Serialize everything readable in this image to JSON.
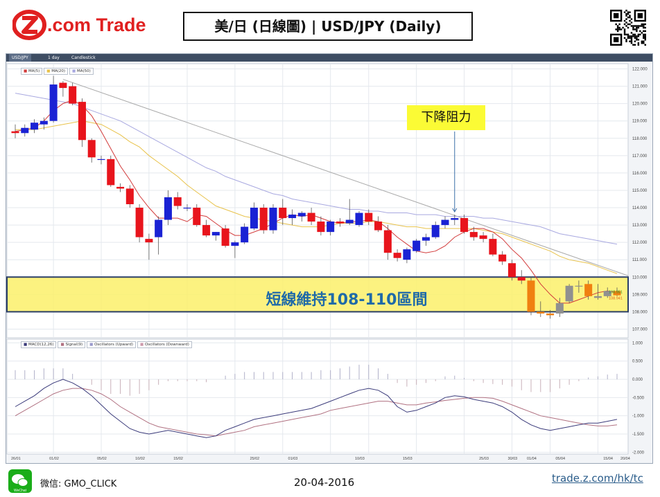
{
  "header": {
    "brand_name": "Z.com Trade",
    "title": "美/日 (日線圖) | USD/JPY  (Daily)"
  },
  "toolbar": {
    "tabs": [
      "USD/JPY",
      "1 day",
      "Candlestick"
    ]
  },
  "price_legend": [
    "MA(5)",
    "MA(20)",
    "MA(50)"
  ],
  "macd_legend": [
    "MACD(12,26)",
    "Signal(9)",
    "Oscillators (Upward)",
    "Oscillators (Downward)"
  ],
  "annotations": {
    "resistance_label": "下降阻力",
    "range_label": "短線維持108-110區間",
    "last_price_ask": "108.951",
    "last_price_bid": "108.941"
  },
  "colors": {
    "bull": "#1a22d4",
    "bear": "#e8141c",
    "recent_bull": "#909090",
    "recent_bear": "#f08010",
    "ma5": "#d23a3a",
    "ma20": "#e8c24a",
    "ma50": "#a8a8e0",
    "trendline": "#a8a8a8",
    "macd": "#3a3a7a",
    "signal": "#b07080",
    "band_fill": "#fbf06a",
    "band_border": "#2a3e66"
  },
  "chart_data": [
    {
      "type": "candlestick",
      "symbol": "USD/JPY",
      "timeframe": "1 day",
      "ylim": [
        106.5,
        122.3
      ],
      "yticks": [
        "122.000",
        "121.000",
        "120.000",
        "119.000",
        "118.000",
        "117.000",
        "116.000",
        "115.000",
        "114.000",
        "113.000",
        "112.000",
        "111.000",
        "110.000",
        "109.000",
        "108.000",
        "107.000"
      ],
      "xticks": [
        "26/01",
        "01/02",
        "05/02",
        "10/02",
        "15/02",
        "25/02",
        "01/03",
        "10/03",
        "15/03",
        "25/03",
        "30/03",
        "01/04",
        "05/04",
        "15/04",
        "20/04"
      ],
      "candles": [
        {
          "o": 118.4,
          "h": 118.8,
          "l": 118.0,
          "c": 118.3
        },
        {
          "o": 118.3,
          "h": 118.8,
          "l": 118.1,
          "c": 118.6
        },
        {
          "o": 118.5,
          "h": 119.1,
          "l": 118.3,
          "c": 118.9
        },
        {
          "o": 118.8,
          "h": 119.2,
          "l": 118.5,
          "c": 119.0
        },
        {
          "o": 119.0,
          "h": 121.6,
          "l": 118.9,
          "c": 121.1
        },
        {
          "o": 121.2,
          "h": 121.3,
          "l": 120.4,
          "c": 120.9
        },
        {
          "o": 121.0,
          "h": 121.2,
          "l": 119.9,
          "c": 120.0
        },
        {
          "o": 120.1,
          "h": 120.3,
          "l": 117.5,
          "c": 117.9
        },
        {
          "o": 117.9,
          "h": 118.0,
          "l": 116.6,
          "c": 116.9
        },
        {
          "o": 116.8,
          "h": 117.0,
          "l": 116.5,
          "c": 116.8
        },
        {
          "o": 116.8,
          "h": 117.0,
          "l": 115.2,
          "c": 115.3
        },
        {
          "o": 115.2,
          "h": 115.4,
          "l": 114.9,
          "c": 115.1
        },
        {
          "o": 115.1,
          "h": 115.3,
          "l": 114.0,
          "c": 114.2
        },
        {
          "o": 114.0,
          "h": 114.2,
          "l": 112.0,
          "c": 112.3
        },
        {
          "o": 112.2,
          "h": 112.5,
          "l": 111.0,
          "c": 112.0
        },
        {
          "o": 112.3,
          "h": 113.5,
          "l": 111.3,
          "c": 113.3
        },
        {
          "o": 113.3,
          "h": 115.0,
          "l": 113.0,
          "c": 114.6
        },
        {
          "o": 114.6,
          "h": 114.9,
          "l": 113.9,
          "c": 114.1
        },
        {
          "o": 114.0,
          "h": 114.2,
          "l": 113.8,
          "c": 114.0
        },
        {
          "o": 114.0,
          "h": 114.2,
          "l": 112.9,
          "c": 113.0
        },
        {
          "o": 113.0,
          "h": 113.3,
          "l": 112.3,
          "c": 112.4
        },
        {
          "o": 112.4,
          "h": 112.6,
          "l": 112.1,
          "c": 112.6
        },
        {
          "o": 112.8,
          "h": 113.0,
          "l": 111.7,
          "c": 111.8
        },
        {
          "o": 111.8,
          "h": 112.1,
          "l": 111.1,
          "c": 112.0
        },
        {
          "o": 112.0,
          "h": 113.1,
          "l": 111.9,
          "c": 112.9
        },
        {
          "o": 112.8,
          "h": 114.3,
          "l": 112.7,
          "c": 114.0
        },
        {
          "o": 114.0,
          "h": 114.2,
          "l": 112.5,
          "c": 112.7
        },
        {
          "o": 112.7,
          "h": 114.2,
          "l": 112.5,
          "c": 114.0
        },
        {
          "o": 114.0,
          "h": 114.5,
          "l": 113.0,
          "c": 113.4
        },
        {
          "o": 113.4,
          "h": 113.9,
          "l": 113.0,
          "c": 113.6
        },
        {
          "o": 113.5,
          "h": 113.8,
          "l": 113.2,
          "c": 113.7
        },
        {
          "o": 113.7,
          "h": 114.0,
          "l": 113.0,
          "c": 113.2
        },
        {
          "o": 113.2,
          "h": 113.5,
          "l": 112.4,
          "c": 112.6
        },
        {
          "o": 112.6,
          "h": 113.3,
          "l": 112.4,
          "c": 113.2
        },
        {
          "o": 113.2,
          "h": 113.4,
          "l": 112.9,
          "c": 113.1
        },
        {
          "o": 113.1,
          "h": 114.5,
          "l": 113.0,
          "c": 113.3
        },
        {
          "o": 113.0,
          "h": 113.8,
          "l": 112.9,
          "c": 113.7
        },
        {
          "o": 113.7,
          "h": 113.9,
          "l": 113.0,
          "c": 113.2
        },
        {
          "o": 113.2,
          "h": 113.5,
          "l": 112.6,
          "c": 112.7
        },
        {
          "o": 112.7,
          "h": 113.0,
          "l": 111.0,
          "c": 111.4
        },
        {
          "o": 111.4,
          "h": 111.6,
          "l": 110.9,
          "c": 111.1
        },
        {
          "o": 111.0,
          "h": 111.7,
          "l": 110.8,
          "c": 111.6
        },
        {
          "o": 111.5,
          "h": 112.2,
          "l": 111.4,
          "c": 112.1
        },
        {
          "o": 112.1,
          "h": 112.5,
          "l": 111.8,
          "c": 112.3
        },
        {
          "o": 112.3,
          "h": 113.2,
          "l": 112.2,
          "c": 113.0
        },
        {
          "o": 113.0,
          "h": 113.5,
          "l": 112.8,
          "c": 113.3
        },
        {
          "o": 113.3,
          "h": 113.6,
          "l": 113.0,
          "c": 113.4
        },
        {
          "o": 113.4,
          "h": 113.6,
          "l": 112.5,
          "c": 112.6
        },
        {
          "o": 112.6,
          "h": 112.9,
          "l": 112.1,
          "c": 112.3
        },
        {
          "o": 112.4,
          "h": 112.6,
          "l": 112.0,
          "c": 112.2
        },
        {
          "o": 112.2,
          "h": 112.5,
          "l": 111.2,
          "c": 111.3
        },
        {
          "o": 111.3,
          "h": 111.5,
          "l": 110.7,
          "c": 110.9
        },
        {
          "o": 110.8,
          "h": 111.0,
          "l": 109.8,
          "c": 110.0
        },
        {
          "o": 110.0,
          "h": 110.4,
          "l": 109.6,
          "c": 109.8
        },
        {
          "o": 109.8,
          "h": 110.0,
          "l": 107.8,
          "c": 108.0
        },
        {
          "o": 108.0,
          "h": 108.6,
          "l": 107.7,
          "c": 107.9
        },
        {
          "o": 107.9,
          "h": 108.1,
          "l": 107.6,
          "c": 107.8
        },
        {
          "o": 107.9,
          "h": 108.8,
          "l": 107.7,
          "c": 108.5
        },
        {
          "o": 108.6,
          "h": 109.6,
          "l": 108.5,
          "c": 109.5
        },
        {
          "o": 109.5,
          "h": 109.8,
          "l": 109.1,
          "c": 109.5
        },
        {
          "o": 109.6,
          "h": 109.8,
          "l": 108.7,
          "c": 108.9
        },
        {
          "o": 108.8,
          "h": 109.6,
          "l": 108.7,
          "c": 108.9
        },
        {
          "o": 108.9,
          "h": 109.4,
          "l": 108.8,
          "c": 109.2
        },
        {
          "o": 109.2,
          "h": 109.4,
          "l": 108.9,
          "c": 108.95
        }
      ],
      "ma5": [
        118.4,
        118.5,
        118.6,
        119.0,
        119.6,
        120.0,
        120.2,
        119.9,
        119.3,
        118.4,
        117.4,
        116.4,
        115.6,
        114.7,
        114.0,
        113.4,
        113.4,
        113.4,
        113.2,
        113.6,
        113.5,
        113.1,
        112.7,
        112.4,
        112.4,
        112.6,
        112.8,
        113.1,
        113.4,
        113.6,
        113.5,
        113.6,
        113.4,
        113.2,
        113.1,
        113.2,
        113.2,
        113.3,
        113.2,
        112.8,
        112.3,
        111.9,
        111.5,
        111.4,
        111.5,
        111.8,
        112.3,
        112.6,
        112.8,
        112.8,
        112.6,
        112.2,
        111.6,
        111.1,
        110.4,
        109.6,
        109.0,
        108.5,
        108.5,
        108.7,
        108.9,
        109.1,
        109.2,
        109.1
      ],
      "ma20": [
        118.5,
        118.5,
        118.5,
        118.6,
        118.7,
        118.8,
        118.9,
        119.0,
        118.9,
        118.8,
        118.5,
        118.2,
        117.8,
        117.5,
        117.0,
        116.6,
        116.2,
        115.8,
        115.3,
        114.9,
        114.5,
        114.1,
        113.9,
        113.7,
        113.5,
        113.4,
        113.3,
        113.2,
        113.1,
        113.0,
        112.9,
        112.9,
        112.9,
        113.0,
        113.1,
        113.1,
        113.1,
        113.2,
        113.2,
        113.1,
        113.0,
        112.9,
        112.9,
        112.8,
        112.8,
        112.8,
        112.8,
        112.8,
        112.8,
        112.7,
        112.6,
        112.5,
        112.3,
        112.1,
        111.9,
        111.7,
        111.5,
        111.2,
        111.0,
        110.9,
        110.8,
        110.6,
        110.4,
        110.2
      ],
      "ma50": [
        120.6,
        120.5,
        120.4,
        120.3,
        120.2,
        120.1,
        120.0,
        119.8,
        119.6,
        119.4,
        119.2,
        119.0,
        118.7,
        118.4,
        118.1,
        117.8,
        117.5,
        117.2,
        116.9,
        116.6,
        116.3,
        116.1,
        115.8,
        115.6,
        115.4,
        115.2,
        115.0,
        114.8,
        114.7,
        114.5,
        114.4,
        114.3,
        114.2,
        114.1,
        114.0,
        113.9,
        113.9,
        113.8,
        113.8,
        113.7,
        113.7,
        113.7,
        113.6,
        113.6,
        113.6,
        113.5,
        113.5,
        113.5,
        113.5,
        113.4,
        113.4,
        113.3,
        113.2,
        113.1,
        113.0,
        112.9,
        112.7,
        112.5,
        112.4,
        112.3,
        112.2,
        112.1,
        112.0,
        111.9
      ],
      "trendline": {
        "from": {
          "i": 5,
          "v": 121.4
        },
        "to": {
          "i": 63,
          "v": 110.3
        }
      },
      "range_band": [
        108.0,
        110.0
      ]
    },
    {
      "type": "line",
      "title": "MACD(12,26)",
      "ylim": [
        -2.05,
        1.1
      ],
      "yticks": [
        "1.000",
        "0.500",
        "0.000",
        "-0.500",
        "-1.000",
        "-1.500",
        "-2.000"
      ],
      "macd": [
        -0.75,
        -0.6,
        -0.45,
        -0.25,
        -0.1,
        0.0,
        -0.1,
        -0.25,
        -0.45,
        -0.7,
        -0.95,
        -1.15,
        -1.35,
        -1.45,
        -1.5,
        -1.45,
        -1.4,
        -1.45,
        -1.5,
        -1.55,
        -1.6,
        -1.55,
        -1.4,
        -1.3,
        -1.2,
        -1.1,
        -1.05,
        -1.0,
        -0.95,
        -0.9,
        -0.85,
        -0.8,
        -0.7,
        -0.6,
        -0.5,
        -0.4,
        -0.3,
        -0.25,
        -0.3,
        -0.45,
        -0.75,
        -0.9,
        -0.85,
        -0.75,
        -0.65,
        -0.5,
        -0.45,
        -0.48,
        -0.55,
        -0.6,
        -0.65,
        -0.75,
        -0.9,
        -1.1,
        -1.25,
        -1.35,
        -1.4,
        -1.35,
        -1.3,
        -1.25,
        -1.2,
        -1.2,
        -1.15,
        -1.1
      ],
      "signal": [
        -1.0,
        -0.85,
        -0.7,
        -0.55,
        -0.4,
        -0.3,
        -0.25,
        -0.25,
        -0.3,
        -0.4,
        -0.55,
        -0.75,
        -0.9,
        -1.05,
        -1.2,
        -1.3,
        -1.35,
        -1.4,
        -1.45,
        -1.5,
        -1.52,
        -1.55,
        -1.5,
        -1.45,
        -1.4,
        -1.3,
        -1.25,
        -1.2,
        -1.15,
        -1.1,
        -1.05,
        -1.0,
        -0.95,
        -0.85,
        -0.8,
        -0.75,
        -0.7,
        -0.65,
        -0.6,
        -0.6,
        -0.65,
        -0.7,
        -0.7,
        -0.65,
        -0.62,
        -0.58,
        -0.55,
        -0.52,
        -0.5,
        -0.5,
        -0.52,
        -0.6,
        -0.7,
        -0.8,
        -0.9,
        -1.0,
        -1.05,
        -1.1,
        -1.15,
        -1.2,
        -1.25,
        -1.28,
        -1.28,
        -1.25
      ],
      "histogram": [
        0.25,
        0.25,
        0.25,
        0.3,
        0.3,
        0.3,
        0.15,
        0.0,
        -0.15,
        -0.3,
        -0.4,
        -0.4,
        -0.45,
        -0.4,
        -0.3,
        -0.15,
        -0.05,
        -0.05,
        -0.05,
        -0.05,
        -0.08,
        0.0,
        0.1,
        0.15,
        0.2,
        0.2,
        0.2,
        0.2,
        0.2,
        0.2,
        0.2,
        0.2,
        0.25,
        0.25,
        0.3,
        0.35,
        0.4,
        0.4,
        0.3,
        0.15,
        -0.1,
        -0.2,
        -0.15,
        -0.1,
        -0.05,
        0.08,
        0.1,
        0.04,
        -0.05,
        -0.1,
        -0.13,
        -0.15,
        -0.2,
        -0.3,
        -0.35,
        -0.35,
        -0.35,
        -0.25,
        -0.15,
        -0.05,
        0.05,
        0.08,
        0.13,
        0.15
      ]
    }
  ],
  "footer": {
    "wechat_badge": "WeChat",
    "wechat": "微信: GMO_CLICK",
    "date": "20-04-2016",
    "link": "trade.z.com/hk/tc"
  }
}
